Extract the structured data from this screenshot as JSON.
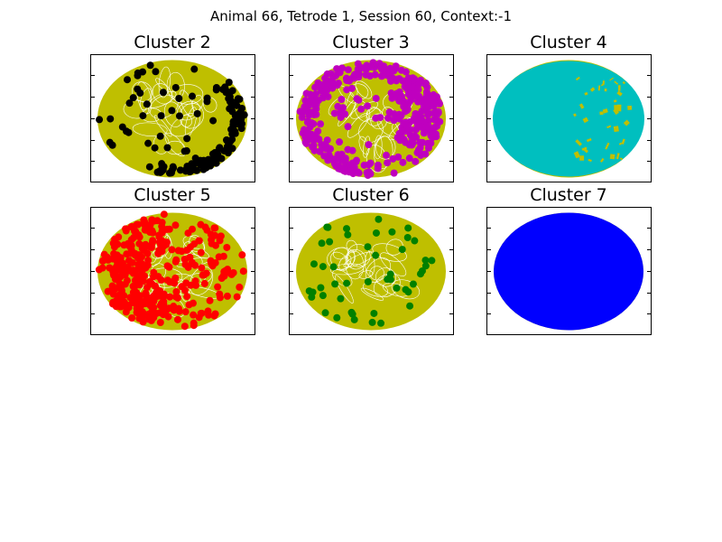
{
  "figure": {
    "title": "Animal 66, Tetrode 1, Session 60, Context:-1"
  },
  "colors": {
    "trajectory": "#bfbf00",
    "axes": "#000000",
    "background": "#ffffff"
  },
  "chart_data": [
    {
      "type": "scatter",
      "title": "Cluster 2",
      "spike_color": "#000000",
      "spike_marker": "dot",
      "trajectory_color": "#bfbf00",
      "arena_shape": "ellipse",
      "spike_pattern": "scattered, dense along the lower-right rim",
      "xticks_labeled": false,
      "yticks_labeled": false
    },
    {
      "type": "scatter",
      "title": "Cluster 3",
      "spike_color": "#bf00bf",
      "spike_marker": "dot",
      "trajectory_color": "#bfbf00",
      "arena_shape": "ellipse",
      "spike_pattern": "dense along the left, bottom and right rim",
      "xticks_labeled": false,
      "yticks_labeled": false
    },
    {
      "type": "scatter",
      "title": "Cluster 4",
      "spike_color": "#00bfbf",
      "spike_marker": "dot",
      "trajectory_color": "#bfbf00",
      "arena_shape": "ellipse",
      "spike_pattern": "covers almost the whole arena",
      "xticks_labeled": false,
      "yticks_labeled": false
    },
    {
      "type": "scatter",
      "title": "Cluster 5",
      "spike_color": "#ff0000",
      "spike_marker": "dot",
      "trajectory_color": "#bfbf00",
      "arena_shape": "ellipse",
      "spike_pattern": "widespread, densest on the left half",
      "xticks_labeled": false,
      "yticks_labeled": false
    },
    {
      "type": "scatter",
      "title": "Cluster 6",
      "spike_color": "#008000",
      "spike_marker": "dot",
      "trajectory_color": "#bfbf00",
      "arena_shape": "ellipse",
      "spike_pattern": "sparse, scattered",
      "xticks_labeled": false,
      "yticks_labeled": false
    },
    {
      "type": "scatter",
      "title": "Cluster 7",
      "spike_color": "#0000ff",
      "spike_marker": "dot",
      "trajectory_color": "#bfbf00",
      "arena_shape": "ellipse",
      "spike_pattern": "covers the entire arena",
      "xticks_labeled": false,
      "yticks_labeled": false
    }
  ]
}
